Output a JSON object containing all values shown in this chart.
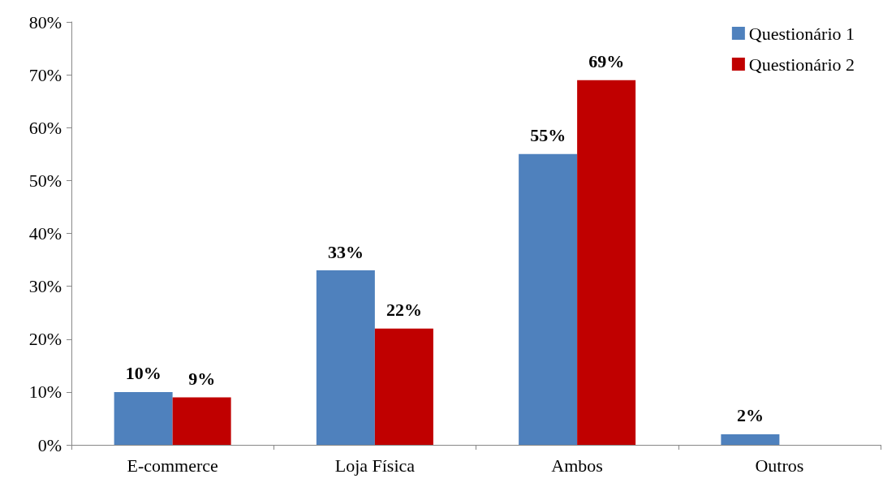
{
  "chart_data": {
    "type": "bar",
    "categories": [
      "E-commerce",
      "Loja Física",
      "Ambos",
      "Outros"
    ],
    "series": [
      {
        "name": "Questionário 1",
        "color": "#4f81bd",
        "values": [
          10,
          33,
          55,
          2
        ],
        "value_labels": [
          "10%",
          "33%",
          "55%",
          "2%"
        ]
      },
      {
        "name": "Questionário 2",
        "color": "#c00000",
        "values": [
          9,
          22,
          69,
          null
        ],
        "value_labels": [
          "9%",
          "22%",
          "69%",
          null
        ]
      }
    ],
    "ylim": [
      0,
      80
    ],
    "yticks": [
      {
        "value": 0,
        "label": "0%"
      },
      {
        "value": 10,
        "label": "10%"
      },
      {
        "value": 20,
        "label": "20%"
      },
      {
        "value": 30,
        "label": "30%"
      },
      {
        "value": 40,
        "label": "40%"
      },
      {
        "value": 50,
        "label": "50%"
      },
      {
        "value": 60,
        "label": "60%"
      },
      {
        "value": 70,
        "label": "70%"
      },
      {
        "value": 80,
        "label": "80%"
      }
    ],
    "grid": false,
    "legend": "top right"
  }
}
